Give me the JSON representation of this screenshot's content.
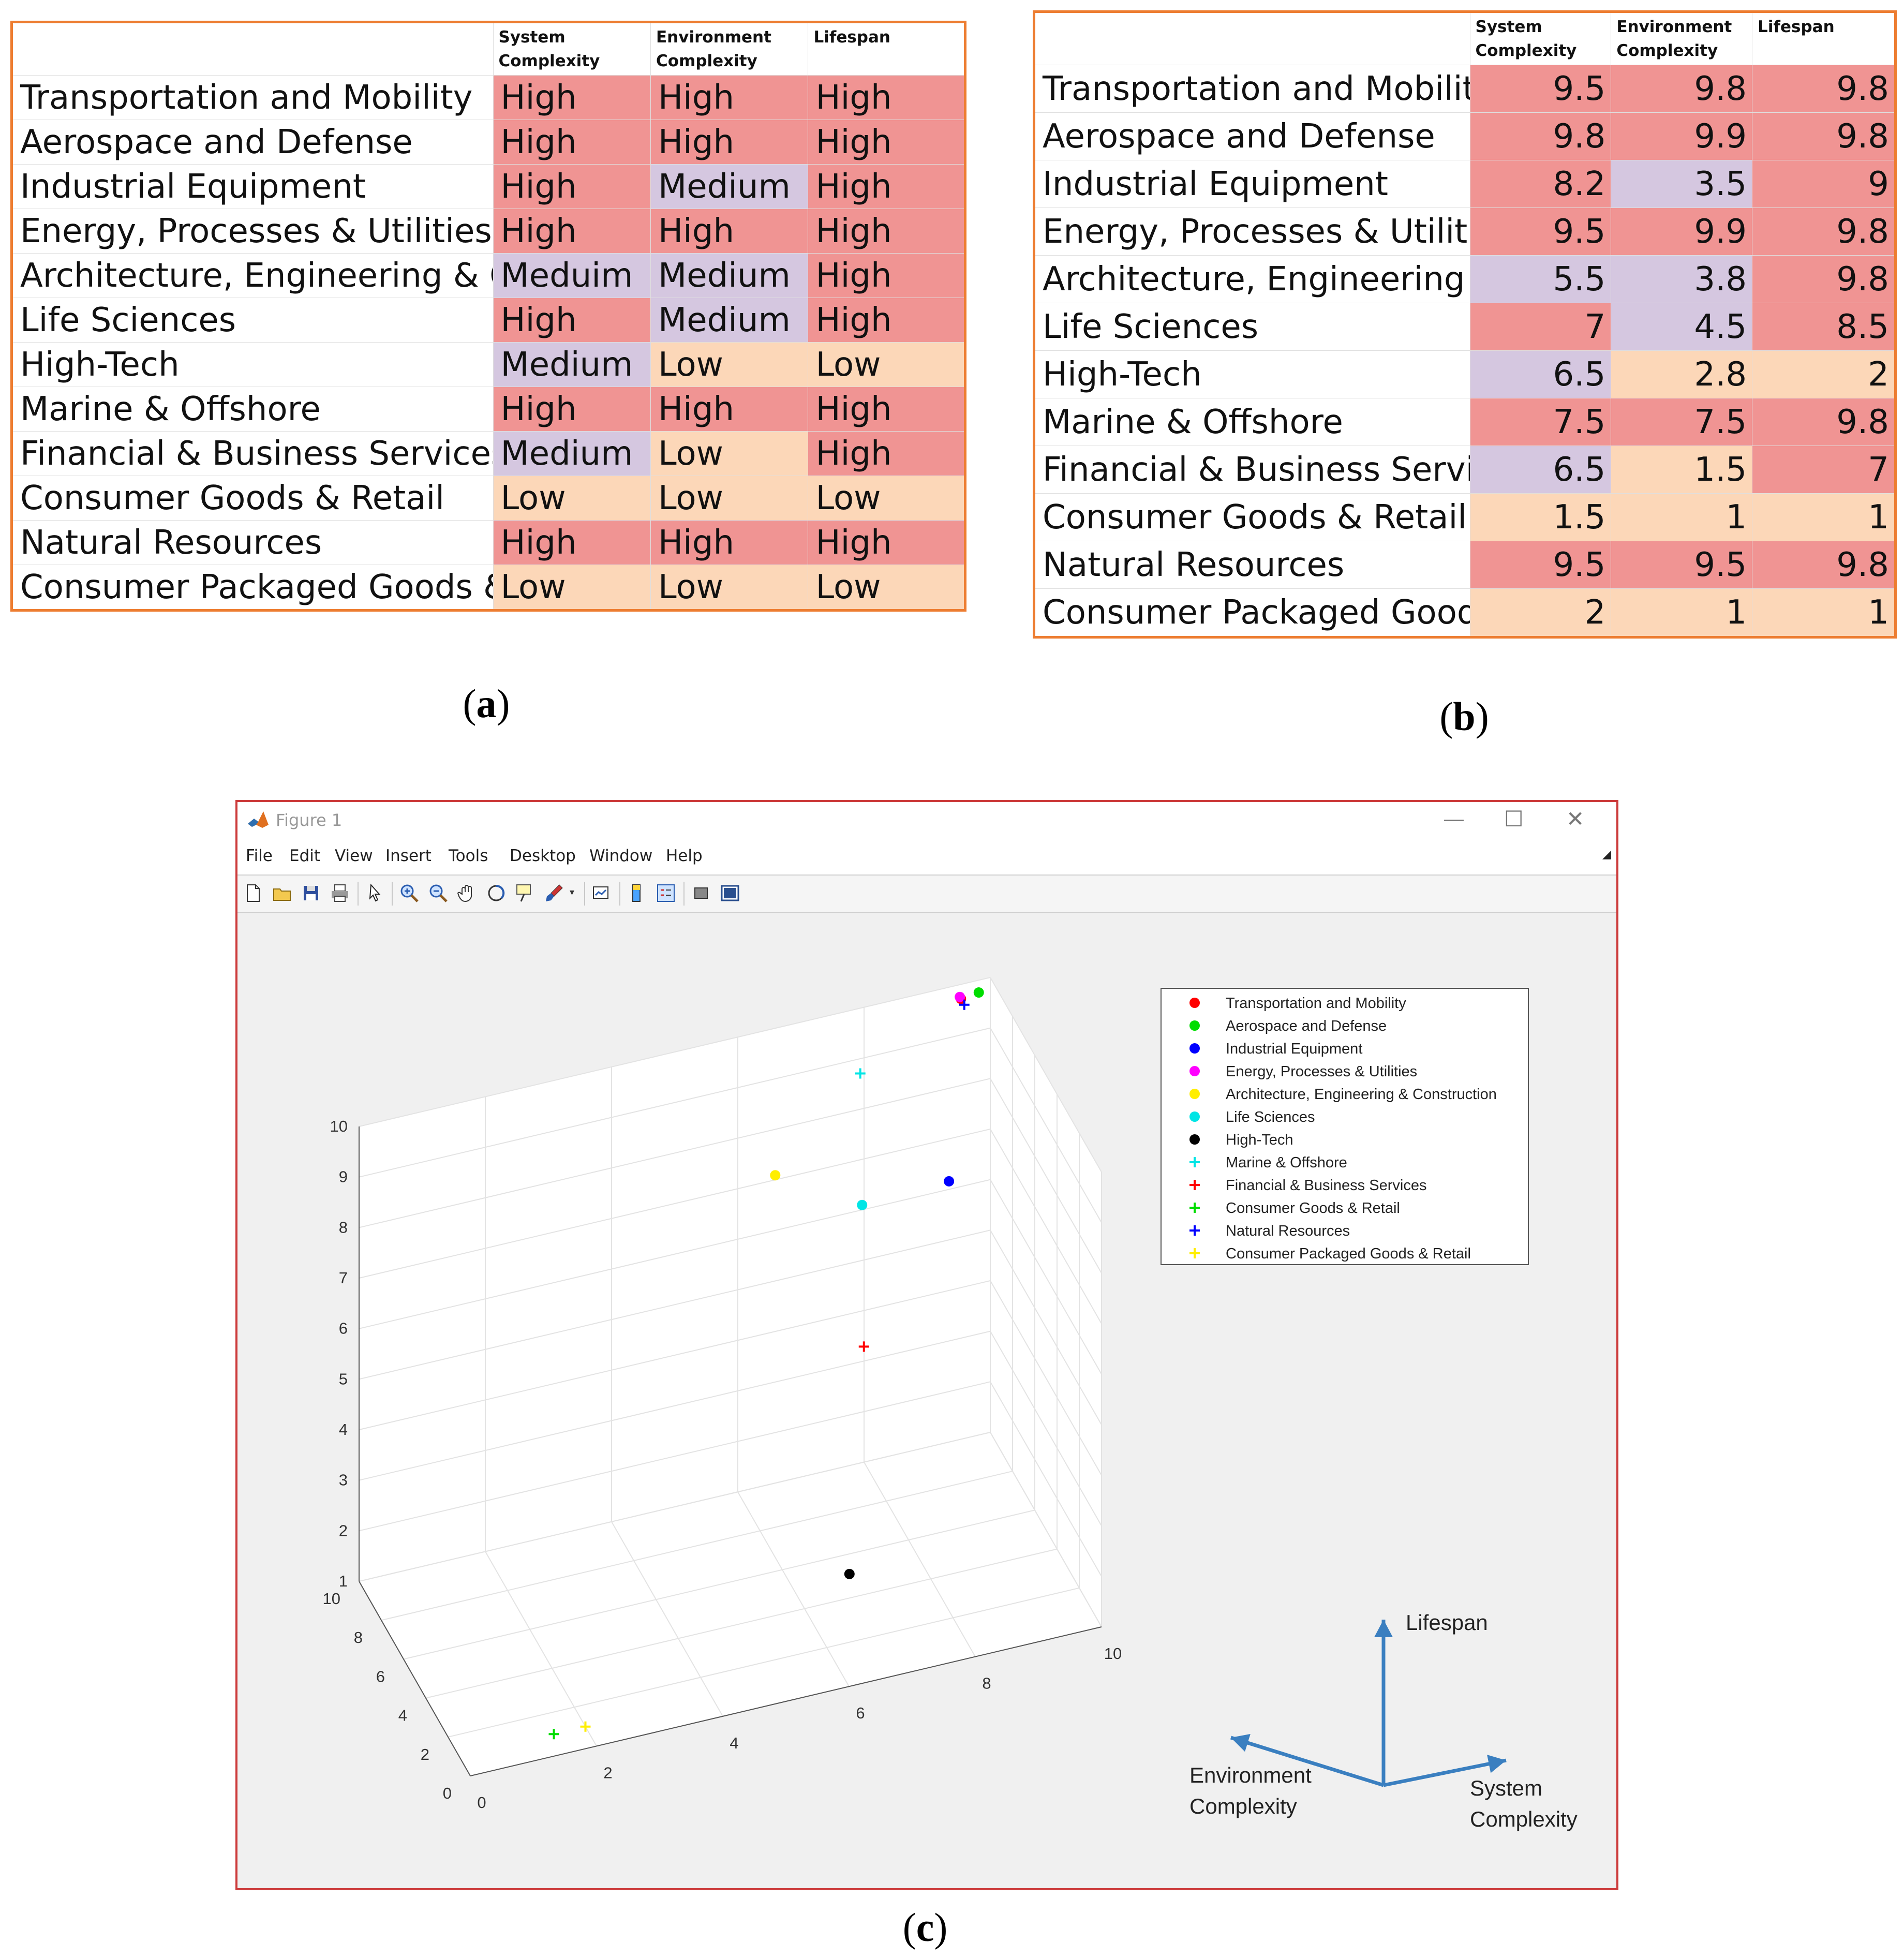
{
  "tables": {
    "a": {
      "caption": "a",
      "headers": [
        "System Complexity",
        "Environment Complexity",
        "Lifespan"
      ],
      "rows": [
        {
          "name": "Transportation and Mobility",
          "cells": [
            "High",
            "High",
            "High"
          ],
          "levels": [
            "high",
            "high",
            "high"
          ]
        },
        {
          "name": "Aerospace and Defense",
          "cells": [
            "High",
            "High",
            "High"
          ],
          "levels": [
            "high",
            "high",
            "high"
          ]
        },
        {
          "name": "Industrial Equipment",
          "cells": [
            "High",
            "Medium",
            "High"
          ],
          "levels": [
            "high",
            "med",
            "high"
          ]
        },
        {
          "name": "Energy, Processes & Utilities",
          "cells": [
            "High",
            "High",
            "High"
          ],
          "levels": [
            "high",
            "high",
            "high"
          ]
        },
        {
          "name": "Architecture, Engineering & C",
          "cells": [
            "Meduim",
            "Medium",
            "High"
          ],
          "levels": [
            "med",
            "med",
            "high"
          ]
        },
        {
          "name": "Life Sciences",
          "cells": [
            "High",
            "Medium",
            "High"
          ],
          "levels": [
            "high",
            "med",
            "high"
          ]
        },
        {
          "name": "High-Tech",
          "cells": [
            "Medium",
            "Low",
            "Low"
          ],
          "levels": [
            "med",
            "low",
            "low"
          ]
        },
        {
          "name": "Marine & Offshore",
          "cells": [
            "High",
            "High",
            "High"
          ],
          "levels": [
            "high",
            "high",
            "high"
          ]
        },
        {
          "name": "Financial & Business Services",
          "cells": [
            "Medium",
            "Low",
            "High"
          ],
          "levels": [
            "med",
            "low",
            "high"
          ]
        },
        {
          "name": "Consumer Goods & Retail",
          "cells": [
            "Low",
            "Low",
            "Low"
          ],
          "levels": [
            "low",
            "low",
            "low"
          ]
        },
        {
          "name": "Natural Resources",
          "cells": [
            "High",
            "High",
            "High"
          ],
          "levels": [
            "high",
            "high",
            "high"
          ]
        },
        {
          "name": "Consumer Packaged Goods &",
          "cells": [
            "Low",
            "Low",
            "Low"
          ],
          "levels": [
            "low",
            "low",
            "low"
          ]
        }
      ]
    },
    "b": {
      "caption": "b",
      "headers": [
        "System Complexity",
        "Environment Complexity",
        "Lifespan"
      ],
      "rows": [
        {
          "name": "Transportation and Mobility",
          "cells": [
            "9.5",
            "9.8",
            "9.8"
          ],
          "levels": [
            "high",
            "high",
            "high"
          ]
        },
        {
          "name": "Aerospace and Defense",
          "cells": [
            "9.8",
            "9.9",
            "9.8"
          ],
          "levels": [
            "high",
            "high",
            "high"
          ]
        },
        {
          "name": "Industrial Equipment",
          "cells": [
            "8.2",
            "3.5",
            "9"
          ],
          "levels": [
            "high",
            "med",
            "high"
          ]
        },
        {
          "name": "Energy, Processes & Utilities",
          "cells": [
            "9.5",
            "9.9",
            "9.8"
          ],
          "levels": [
            "high",
            "high",
            "high"
          ]
        },
        {
          "name": "Architecture, Engineering & C",
          "cells": [
            "5.5",
            "3.8",
            "9.8"
          ],
          "levels": [
            "med",
            "med",
            "high"
          ]
        },
        {
          "name": "Life Sciences",
          "cells": [
            "7",
            "4.5",
            "8.5"
          ],
          "levels": [
            "high",
            "med",
            "high"
          ]
        },
        {
          "name": "High-Tech",
          "cells": [
            "6.5",
            "2.8",
            "2"
          ],
          "levels": [
            "med",
            "low",
            "low"
          ]
        },
        {
          "name": "Marine & Offshore",
          "cells": [
            "7.5",
            "7.5",
            "9.8"
          ],
          "levels": [
            "high",
            "high",
            "high"
          ]
        },
        {
          "name": "Financial & Business Services",
          "cells": [
            "6.5",
            "1.5",
            "7"
          ],
          "levels": [
            "med",
            "low",
            "high"
          ]
        },
        {
          "name": "Consumer Goods & Retail",
          "cells": [
            "1.5",
            "1",
            "1"
          ],
          "levels": [
            "low",
            "low",
            "low"
          ]
        },
        {
          "name": "Natural Resources",
          "cells": [
            "9.5",
            "9.5",
            "9.8"
          ],
          "levels": [
            "high",
            "high",
            "high"
          ]
        },
        {
          "name": "Consumer Packaged Goods &",
          "cells": [
            "2",
            "1",
            "1"
          ],
          "levels": [
            "low",
            "low",
            "low"
          ]
        }
      ]
    }
  },
  "level_colors": {
    "high": "#f09493",
    "med": "#d5c7e0",
    "low": "#fcd7b8"
  },
  "figure": {
    "caption": "c",
    "window_title": "Figure 1",
    "menu": [
      "File",
      "Edit",
      "View",
      "Insert",
      "Tools",
      "Desktop",
      "Window",
      "Help"
    ],
    "toolbar_icons": [
      "new-figure-icon",
      "open-file-icon",
      "save-icon",
      "print-icon",
      "pointer-icon",
      "zoom-in-icon",
      "zoom-out-icon",
      "pan-icon",
      "rotate-3d-icon",
      "data-cursor-icon",
      "brush-icon",
      "link-plot-icon",
      "colorbar-icon",
      "legend-icon",
      "hide-plot-tools-icon",
      "show-plot-tools-icon"
    ],
    "direction_labels": {
      "lifespan": "Lifespan",
      "environment": [
        "Environment",
        "Complexity"
      ],
      "system": [
        "System",
        "Complexity"
      ]
    }
  },
  "chart_data": {
    "type": "scatter",
    "dimensions": "3d",
    "axes": {
      "x": {
        "name": "System Complexity",
        "range": [
          0,
          10
        ],
        "ticks": [
          0,
          2,
          4,
          6,
          8,
          10
        ]
      },
      "y": {
        "name": "Environment Complexity",
        "range": [
          0,
          10
        ],
        "ticks": [
          0,
          2,
          4,
          6,
          8,
          10
        ]
      },
      "z": {
        "name": "Lifespan",
        "range": [
          1,
          10
        ],
        "ticks": [
          1,
          2,
          3,
          4,
          5,
          6,
          7,
          8,
          9,
          10
        ]
      }
    },
    "grid": true,
    "legend_position": "top-right",
    "series": [
      {
        "name": "Transportation and Mobility",
        "marker": "dot",
        "color": "#ff0000",
        "x": 9.5,
        "y": 9.8,
        "z": 9.8
      },
      {
        "name": "Aerospace and Defense",
        "marker": "dot",
        "color": "#00dd00",
        "x": 9.8,
        "y": 9.9,
        "z": 9.8
      },
      {
        "name": "Industrial Equipment",
        "marker": "dot",
        "color": "#0000ff",
        "x": 8.2,
        "y": 3.5,
        "z": 9
      },
      {
        "name": "Energy, Processes & Utilities",
        "marker": "dot",
        "color": "#ff00ff",
        "x": 9.5,
        "y": 9.9,
        "z": 9.8
      },
      {
        "name": "Architecture, Engineering & Construction",
        "marker": "dot",
        "color": "#ffee00",
        "x": 5.5,
        "y": 3.8,
        "z": 9.8
      },
      {
        "name": "Life Sciences",
        "marker": "dot",
        "color": "#00e5e5",
        "x": 7,
        "y": 4.5,
        "z": 8.5
      },
      {
        "name": "High-Tech",
        "marker": "dot",
        "color": "#000000",
        "x": 6.5,
        "y": 2.8,
        "z": 2
      },
      {
        "name": "Marine & Offshore",
        "marker": "plus",
        "color": "#00e5e5",
        "x": 7.5,
        "y": 7.5,
        "z": 9.8
      },
      {
        "name": "Financial & Business Services",
        "marker": "plus",
        "color": "#ff0000",
        "x": 6.5,
        "y": 1.5,
        "z": 7
      },
      {
        "name": "Consumer Goods & Retail",
        "marker": "plus",
        "color": "#00dd00",
        "x": 1.5,
        "y": 1,
        "z": 1
      },
      {
        "name": "Natural Resources",
        "marker": "plus",
        "color": "#0000ff",
        "x": 9.5,
        "y": 9.5,
        "z": 9.8
      },
      {
        "name": "Consumer Packaged Goods & Retail",
        "marker": "plus",
        "color": "#ffee00",
        "x": 2,
        "y": 1,
        "z": 1
      }
    ]
  }
}
